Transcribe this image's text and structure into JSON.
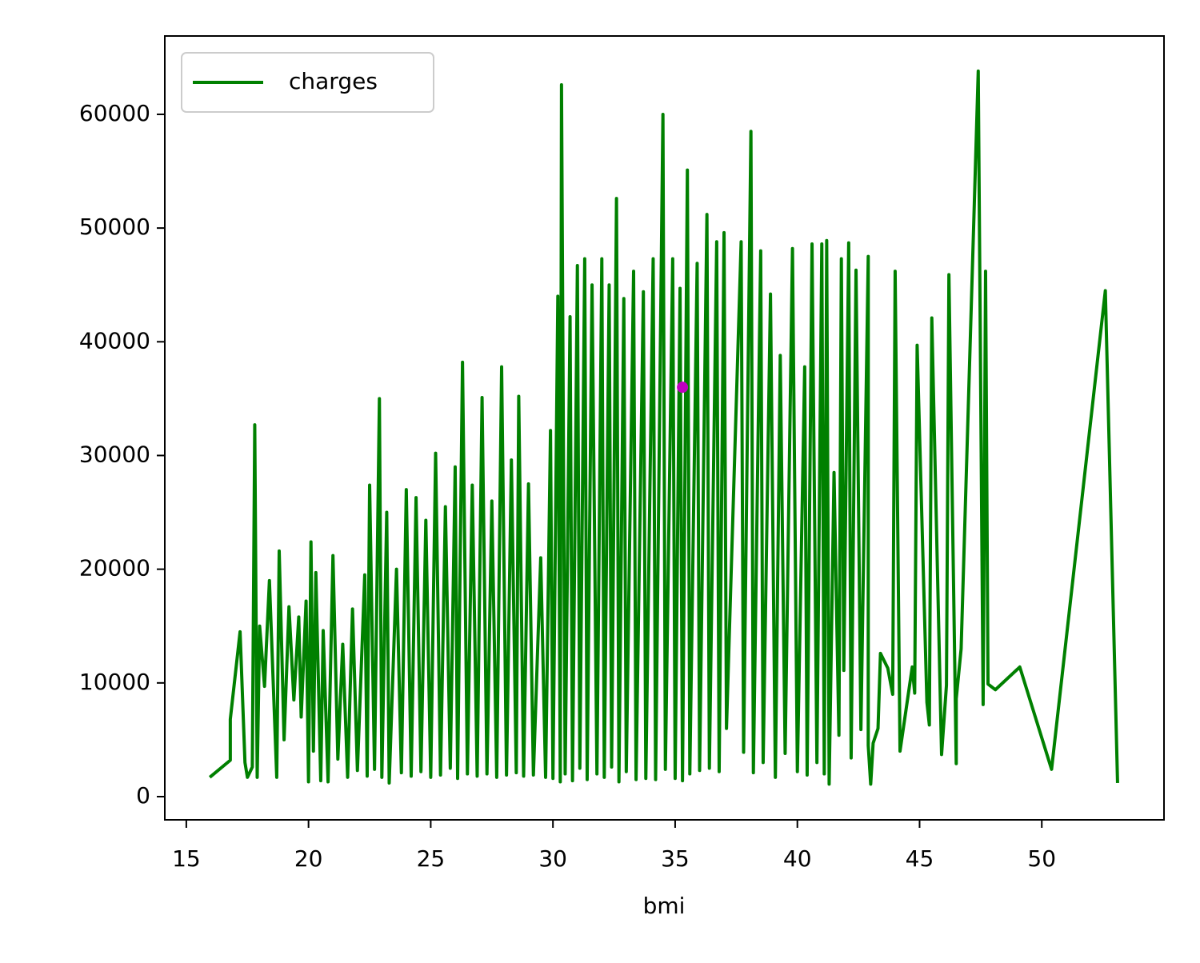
{
  "chart_data": {
    "type": "line",
    "xlabel": "bmi",
    "x": [
      15.96,
      16.8,
      16.8,
      17.2,
      17.4,
      17.5,
      17.7,
      17.8,
      17.9,
      18.0,
      18.2,
      18.4,
      18.7,
      18.8,
      19.0,
      19.2,
      19.4,
      19.6,
      19.7,
      19.9,
      20.0,
      20.1,
      20.2,
      20.3,
      20.5,
      20.6,
      20.8,
      21.0,
      21.2,
      21.4,
      21.6,
      21.8,
      22.0,
      22.3,
      22.4,
      22.5,
      22.7,
      22.9,
      23.0,
      23.2,
      23.3,
      23.6,
      23.8,
      24.0,
      24.2,
      24.4,
      24.6,
      24.8,
      25.0,
      25.2,
      25.4,
      25.6,
      25.8,
      26.0,
      26.1,
      26.3,
      26.5,
      26.7,
      26.9,
      27.1,
      27.3,
      27.5,
      27.7,
      27.9,
      28.1,
      28.3,
      28.5,
      28.6,
      28.8,
      29.0,
      29.2,
      29.5,
      29.7,
      29.9,
      30.0,
      30.2,
      30.3,
      30.35,
      30.5,
      30.7,
      30.8,
      31.0,
      31.1,
      31.3,
      31.4,
      31.6,
      31.8,
      32.0,
      32.1,
      32.3,
      32.4,
      32.6,
      32.7,
      32.9,
      33.0,
      33.3,
      33.4,
      33.7,
      33.8,
      34.1,
      34.2,
      34.5,
      34.6,
      34.9,
      35.0,
      35.2,
      35.3,
      35.5,
      35.6,
      35.9,
      36.0,
      36.3,
      36.4,
      36.7,
      36.8,
      37.0,
      37.1,
      37.7,
      37.8,
      38.1,
      38.2,
      38.5,
      38.6,
      38.9,
      39.1,
      39.3,
      39.5,
      39.8,
      40.0,
      40.3,
      40.4,
      40.6,
      40.8,
      41.0,
      41.1,
      41.2,
      41.3,
      41.5,
      41.7,
      41.8,
      41.9,
      42.1,
      42.2,
      42.4,
      42.6,
      42.9,
      42.9,
      43.0,
      43.1,
      43.3,
      43.4,
      43.7,
      43.9,
      44.0,
      44.2,
      44.7,
      44.8,
      44.9,
      45.3,
      45.4,
      45.5,
      45.9,
      46.1,
      46.2,
      46.5,
      46.5,
      46.7,
      47.4,
      47.6,
      47.7,
      47.8,
      48.1,
      49.1,
      50.4,
      52.6,
      53.1
    ],
    "series": [
      {
        "name": "charges",
        "color": "#008000",
        "values": [
          1700,
          3200,
          6800,
          14500,
          3000,
          1700,
          2600,
          32700,
          1700,
          15000,
          9700,
          19000,
          1700,
          21600,
          5000,
          16700,
          8500,
          15800,
          7000,
          17200,
          1300,
          22400,
          4000,
          19700,
          1400,
          14600,
          1300,
          21200,
          3300,
          13400,
          1700,
          16500,
          2300,
          19500,
          1800,
          27400,
          2400,
          35000,
          1700,
          25000,
          1200,
          20000,
          2100,
          27000,
          1800,
          26300,
          2200,
          24300,
          1700,
          30200,
          1900,
          25500,
          2500,
          29000,
          1600,
          38200,
          2000,
          27400,
          1800,
          35100,
          2000,
          26000,
          1700,
          37800,
          1900,
          29600,
          2100,
          35200,
          1800,
          27500,
          1900,
          21000,
          1700,
          32200,
          1600,
          44000,
          1300,
          62600,
          2000,
          42200,
          1400,
          46700,
          2500,
          47300,
          1500,
          45000,
          2000,
          47300,
          1700,
          45000,
          2600,
          52600,
          1300,
          43800,
          2200,
          46200,
          1500,
          44400,
          1600,
          47300,
          1500,
          60000,
          2400,
          47300,
          1600,
          44700,
          1400,
          55100,
          2000,
          46900,
          2300,
          51200,
          2500,
          48800,
          2200,
          49600,
          6000,
          48800,
          3900,
          58500,
          2100,
          48000,
          3000,
          44200,
          1700,
          38800,
          3800,
          48200,
          2200,
          37800,
          1900,
          48600,
          3000,
          48600,
          2000,
          48900,
          1100,
          28500,
          5400,
          47300,
          11100,
          48700,
          3400,
          46300,
          5900,
          47500,
          4500,
          1100,
          4700,
          6000,
          12600,
          11300,
          9000,
          46200,
          4000,
          11400,
          9100,
          39700,
          8300,
          6300,
          42100,
          3700,
          9800,
          45900,
          2900,
          8600,
          13000,
          63800,
          8100,
          46200,
          9900,
          9400,
          11400,
          2400,
          44500,
          1200
        ]
      }
    ],
    "point": {
      "x": 35.3,
      "y": 36000,
      "color": "#bf00bf"
    },
    "xlim": [
      14.12,
      55.0
    ],
    "ylim": [
      -2040,
      66890
    ],
    "xticks": [
      15,
      20,
      25,
      30,
      35,
      40,
      45,
      50
    ],
    "yticks": [
      0,
      10000,
      20000,
      30000,
      40000,
      50000,
      60000
    ],
    "legend": "upper left"
  }
}
